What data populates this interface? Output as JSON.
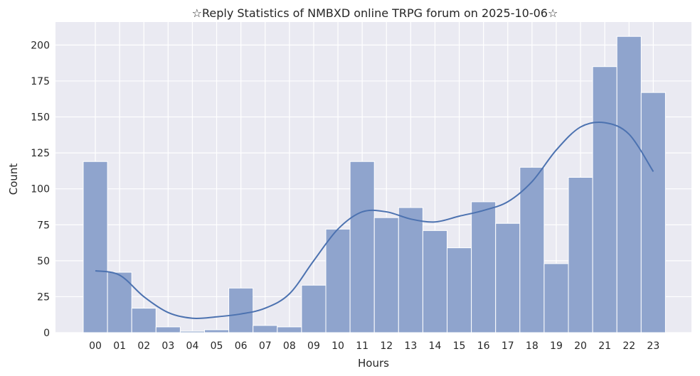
{
  "chart_data": {
    "type": "bar",
    "title": "☆Reply Statistics of NMBXD online TRPG forum on 2025-10-06☆",
    "xlabel": "Hours",
    "ylabel": "Count",
    "categories": [
      "00",
      "01",
      "02",
      "03",
      "04",
      "05",
      "06",
      "07",
      "08",
      "09",
      "10",
      "11",
      "12",
      "13",
      "14",
      "15",
      "16",
      "17",
      "18",
      "19",
      "20",
      "21",
      "22",
      "23"
    ],
    "values": [
      119,
      42,
      17,
      4,
      1,
      2,
      31,
      5,
      4,
      33,
      72,
      119,
      80,
      87,
      71,
      59,
      91,
      76,
      115,
      48,
      108,
      185,
      206,
      167
    ],
    "kde": [
      43,
      40,
      25,
      14,
      10,
      11,
      13,
      17,
      27,
      50,
      72,
      84,
      84,
      79,
      77,
      81,
      85,
      91,
      105,
      127,
      143,
      146,
      138,
      112
    ],
    "ylim": [
      0,
      216
    ],
    "yticks": [
      0,
      25,
      50,
      75,
      100,
      125,
      150,
      175,
      200
    ],
    "grid": true,
    "colors": {
      "background": "#eaeaf2",
      "grid": "#ffffff",
      "bar_fill": "#8fa4cd",
      "bar_edge": "#ffffff",
      "kde_line": "#4c72b0",
      "text": "#262626"
    }
  }
}
